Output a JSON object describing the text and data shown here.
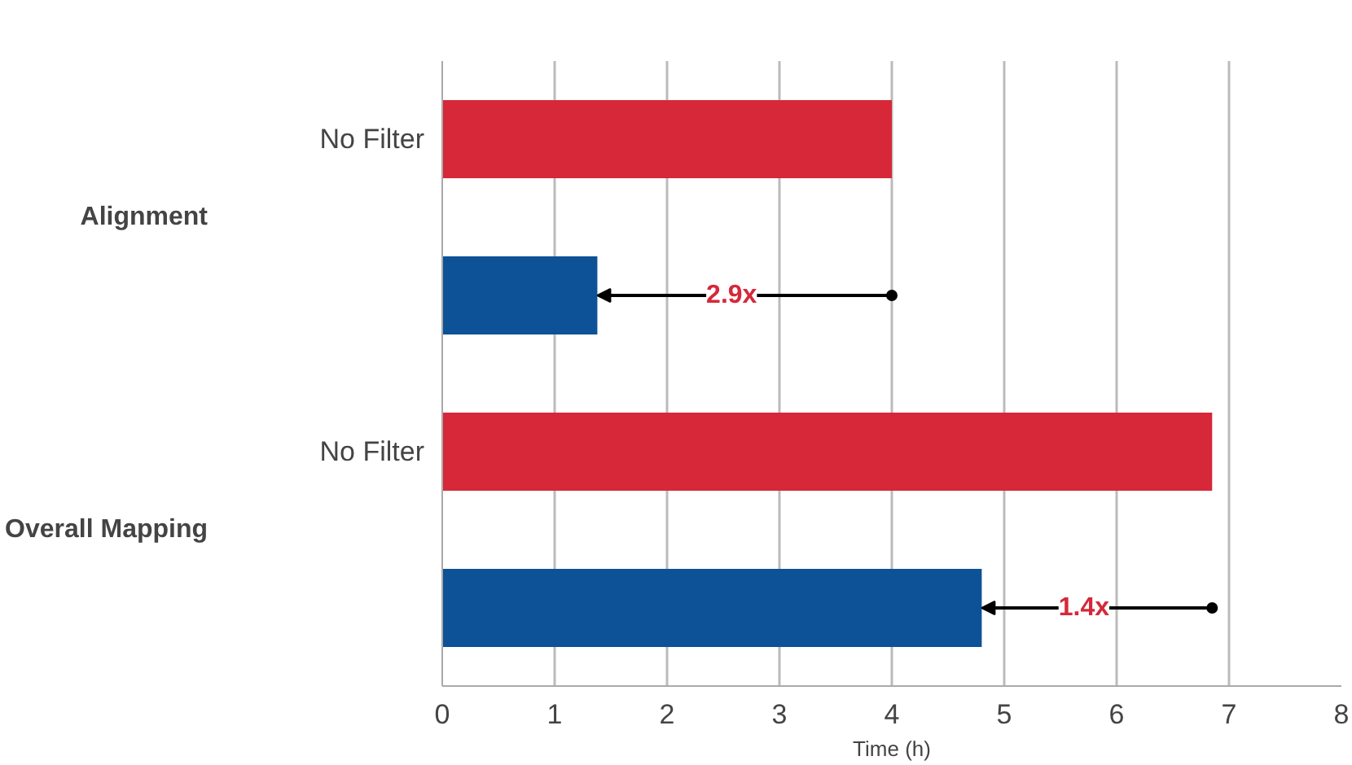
{
  "chart_data": {
    "type": "bar",
    "orientation": "horizontal",
    "categories": [
      "No Filter",
      null,
      "No Filter",
      null
    ],
    "values": [
      4.0,
      1.38,
      6.85,
      4.8
    ],
    "colors": [
      "#d62839",
      "#0d5196",
      "#d62839",
      "#0d5196"
    ],
    "xlabel": "Time (h)",
    "xlim": [
      0,
      8
    ],
    "xticks": [
      0,
      1,
      2,
      3,
      4,
      5,
      6,
      7,
      8
    ],
    "grid": "x",
    "annotations": [
      "Alignment",
      "Overall Mapping",
      "2.9x",
      "1.4x"
    ]
  }
}
